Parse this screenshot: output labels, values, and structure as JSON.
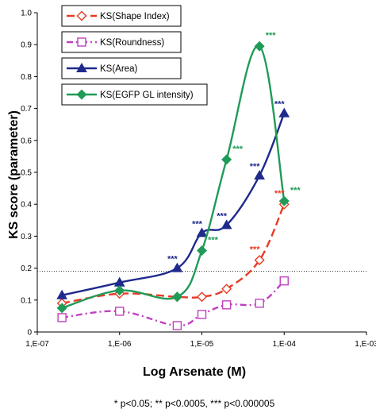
{
  "chart_data": {
    "type": "line",
    "ylabel": "KS score (parameter)",
    "xlabel": "Log Arsenate (M)",
    "footnote": "* p<0.05; ** p<0.0005, *** p<0.000005",
    "xlim": [
      -7,
      -3
    ],
    "ylim": [
      0,
      1.0
    ],
    "x_tick_labels": [
      "1,E-07",
      "1,E-06",
      "1,E-05",
      "1,E-04",
      "1,E-03"
    ],
    "y_tick_labels": [
      "0",
      "0.1",
      "0.2",
      "0.3",
      "0.4",
      "0.5",
      "0.6",
      "0.7",
      "0.8",
      "0.9",
      "1.0"
    ],
    "threshold": 0.19,
    "legend_position": "top-left",
    "series": [
      {
        "name": "KS(Shape Index)",
        "color": "#e83a24",
        "dash": "long-dash",
        "marker": "diamond-open",
        "x": [
          -6.7,
          -6.0,
          -5.3,
          -5.0,
          -4.7,
          -4.3,
          -4.0
        ],
        "y": [
          0.09,
          0.12,
          0.11,
          0.11,
          0.135,
          0.225,
          0.4
        ],
        "significance": [
          {
            "x": -4.3,
            "y": 0.225,
            "label": "***"
          },
          {
            "x": -4.0,
            "y": 0.4,
            "label": "***"
          }
        ]
      },
      {
        "name": "KS(Roundness)",
        "color": "#c040c0",
        "dash": "dash-dot",
        "marker": "square-open",
        "x": [
          -6.7,
          -6.0,
          -5.3,
          -5.0,
          -4.7,
          -4.3,
          -4.0
        ],
        "y": [
          0.045,
          0.065,
          0.02,
          0.055,
          0.085,
          0.09,
          0.16
        ],
        "significance": []
      },
      {
        "name": "KS(Area)",
        "color": "#1f2a8c",
        "dash": "solid",
        "marker": "triangle",
        "x": [
          -6.7,
          -6.0,
          -5.3,
          -5.0,
          -4.7,
          -4.3,
          -4.0
        ],
        "y": [
          0.115,
          0.155,
          0.2,
          0.31,
          0.335,
          0.49,
          0.685
        ],
        "significance": [
          {
            "x": -5.3,
            "y": 0.2,
            "label": "***"
          },
          {
            "x": -5.0,
            "y": 0.31,
            "label": "***"
          },
          {
            "x": -4.7,
            "y": 0.335,
            "label": "***"
          },
          {
            "x": -4.3,
            "y": 0.49,
            "label": "***"
          },
          {
            "x": -4.0,
            "y": 0.685,
            "label": "***"
          }
        ]
      },
      {
        "name": "KS(EGFP GL intensity)",
        "color": "#1f9b57",
        "dash": "solid",
        "marker": "diamond",
        "x": [
          -6.7,
          -6.0,
          -5.3,
          -5.0,
          -4.7,
          -4.3,
          -4.0
        ],
        "y": [
          0.075,
          0.13,
          0.11,
          0.255,
          0.54,
          0.895,
          0.41
        ],
        "significance": [
          {
            "x": -5.0,
            "y": 0.255,
            "label": "***"
          },
          {
            "x": -4.7,
            "y": 0.54,
            "label": "***"
          },
          {
            "x": -4.3,
            "y": 0.895,
            "label": "***"
          },
          {
            "x": -4.0,
            "y": 0.41,
            "label": "***"
          }
        ]
      }
    ]
  }
}
